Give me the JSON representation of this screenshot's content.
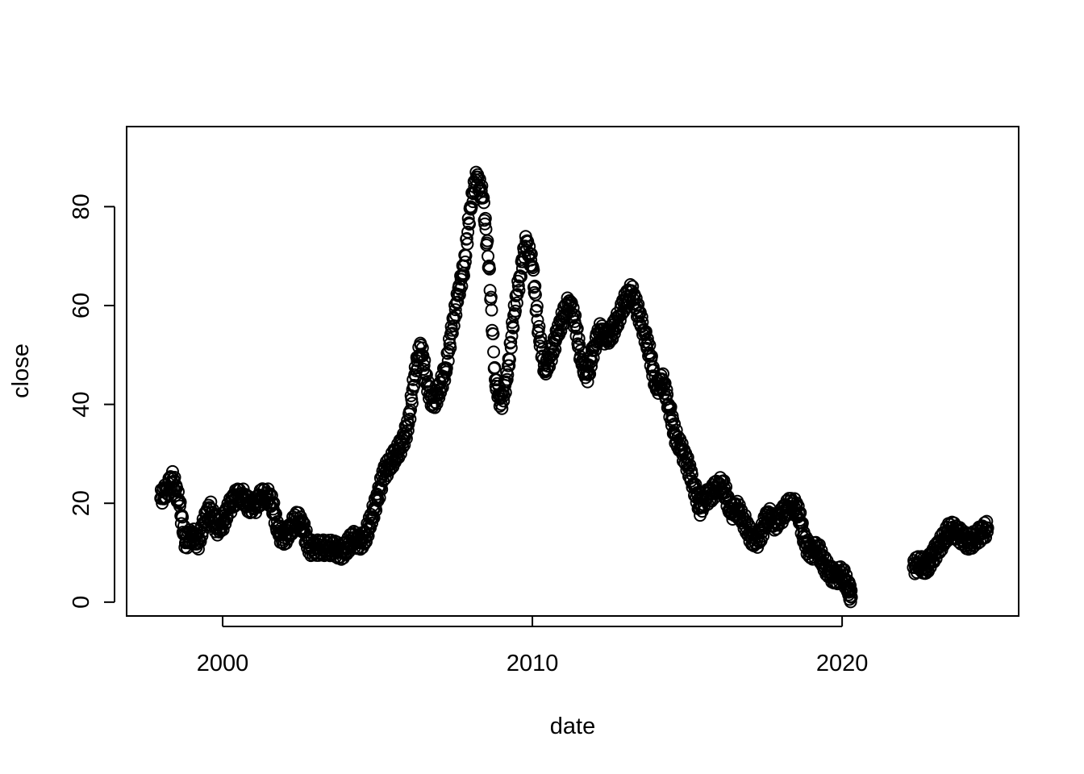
{
  "chart_data": {
    "type": "scatter",
    "title": "",
    "xlabel": "date",
    "ylabel": "close",
    "xlim": [
      1996.9,
      2025.7
    ],
    "ylim": [
      -2.8,
      96.2
    ],
    "x_ticks": [
      2000,
      2010,
      2020
    ],
    "x_tick_labels": [
      "2000",
      "2010",
      "2020"
    ],
    "y_ticks": [
      0,
      20,
      40,
      60,
      80
    ],
    "y_tick_labels": [
      "0",
      "20",
      "40",
      "60",
      "80"
    ],
    "grid": false,
    "legend": "none",
    "marker": "open-circle",
    "point_color": "#000000",
    "series": [
      {
        "x": [
          1998.0,
          1998.2,
          1998.4,
          1998.6,
          1998.8,
          1999.0,
          1999.2,
          1999.4,
          1999.6,
          1999.8,
          2000.0,
          2000.2,
          2000.4,
          2000.6,
          2000.8,
          2001.0,
          2001.2,
          2001.4,
          2001.6,
          2001.8,
          2002.0,
          2002.2,
          2002.4,
          2002.6,
          2002.8,
          2003.0,
          2003.2,
          2003.4,
          2003.6,
          2003.8,
          2004.0,
          2004.2,
          2004.4,
          2004.6,
          2004.8,
          2005.0,
          2005.2,
          2005.4,
          2005.6,
          2005.8,
          2006.0,
          2006.2,
          2006.4,
          2006.6,
          2006.8,
          2007.0,
          2007.2,
          2007.4,
          2007.6,
          2007.8,
          2008.0,
          2008.2,
          2008.4,
          2008.6,
          2008.8,
          2009.0,
          2009.2,
          2009.4,
          2009.6,
          2009.8,
          2010.0,
          2010.2,
          2010.4,
          2010.6,
          2010.8,
          2011.0,
          2011.2,
          2011.4,
          2011.6,
          2011.8,
          2012.0,
          2012.2,
          2012.4,
          2012.6,
          2012.8,
          2013.0,
          2013.2,
          2013.4,
          2013.6,
          2013.8,
          2014.0,
          2014.2,
          2014.4,
          2014.6,
          2014.8,
          2015.0,
          2015.2,
          2015.4,
          2015.6,
          2015.8,
          2016.0,
          2016.2,
          2016.4,
          2016.6,
          2016.8,
          2017.0,
          2017.2,
          2017.4,
          2017.6,
          2017.8,
          2018.0,
          2018.2,
          2018.4,
          2018.6,
          2018.8,
          2019.0,
          2019.2,
          2019.4,
          2019.6,
          2019.8,
          2020.0,
          2020.2,
          2020.3,
          2022.3,
          2022.5,
          2022.7,
          2022.9,
          2023.1,
          2023.3,
          2023.5,
          2023.7,
          2023.9,
          2024.1,
          2024.3,
          2024.5,
          2024.7
        ],
        "values": [
          21,
          23,
          25,
          20,
          12,
          14,
          12,
          16,
          19,
          15,
          16,
          19,
          21,
          22,
          20,
          19,
          21,
          22,
          20,
          14,
          13,
          15,
          17,
          15,
          11,
          11,
          11,
          11,
          11,
          10,
          11,
          13,
          12,
          13,
          17,
          21,
          26,
          28,
          30,
          32,
          36,
          46,
          52,
          44,
          40,
          43,
          47,
          55,
          62,
          68,
          80,
          86,
          82,
          68,
          45,
          40,
          46,
          58,
          66,
          73,
          68,
          55,
          47,
          50,
          54,
          58,
          61,
          56,
          48,
          46,
          52,
          55,
          53,
          55,
          58,
          61,
          63,
          59,
          55,
          50,
          43,
          45,
          40,
          34,
          31,
          28,
          24,
          19,
          21,
          22,
          24,
          23,
          18,
          19,
          17,
          14,
          12,
          14,
          18,
          16,
          17,
          19,
          20,
          18,
          12,
          10,
          11,
          8,
          6,
          5,
          6,
          3,
          1,
          7,
          8,
          7,
          9,
          11,
          13,
          15,
          14,
          13,
          12,
          13,
          14,
          15
        ]
      }
    ]
  }
}
